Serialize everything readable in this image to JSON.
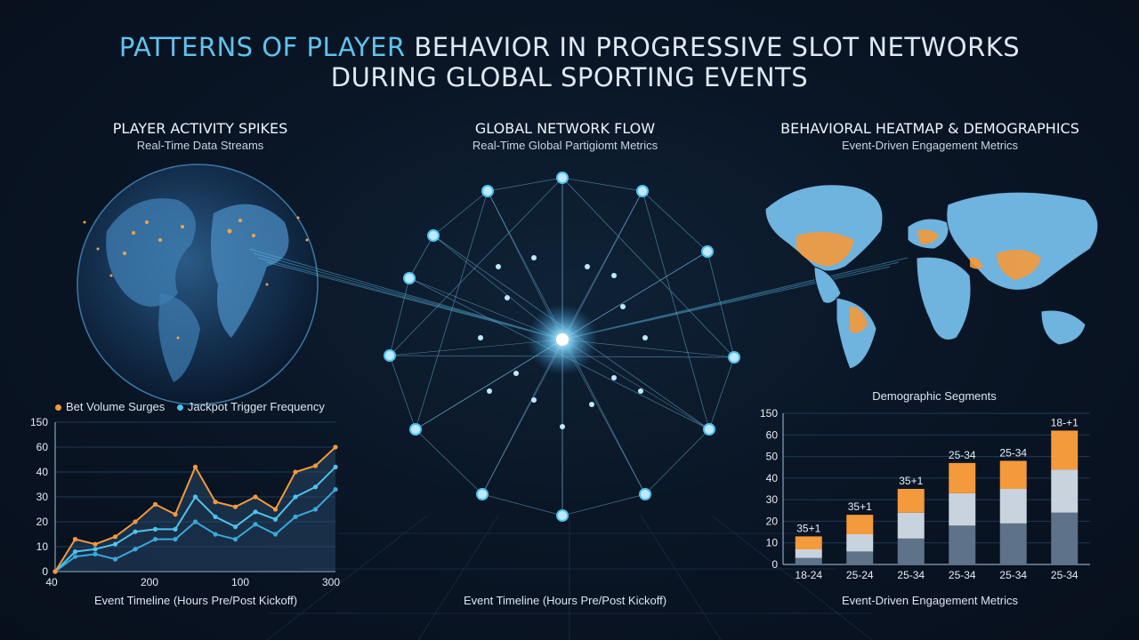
{
  "title": {
    "line1_highlight": "PATTERNS OF PLAYER",
    "line1_rest": " BEHAVIOR IN PROGRESSIVE SLOT NETWORKS",
    "line2": "DURING GLOBAL SPORTING EVENTS"
  },
  "left_panel": {
    "title": "PLAYER ACTIVITY SPIKES",
    "subtitle": "Real-Time Data Streams"
  },
  "center_panel": {
    "title": "GLOBAL NETWORK FLOW",
    "subtitle": "Real-Time Global Partigiomt Metrics",
    "footer": "Event Timeline (Hours Pre/Post Kickoff)"
  },
  "right_panel": {
    "title": "BEHAVIORAL HEATMAP & DEMOGRAPHICS",
    "subtitle": "Event-Driven Engagement Metrics",
    "chart_title": "Demographic Segments",
    "footer": "Event-Driven Engagement Metrics"
  },
  "colors": {
    "orange": "#f39a3c",
    "blue": "#4fc3ec",
    "blue_dim": "#3aa8dc",
    "bar_dark": "#5e7389",
    "bar_light": "#c9d3dd"
  },
  "chart_data": [
    {
      "type": "line",
      "legend": [
        "Bet Volume Surges",
        "Jackpot Trigger Frequency"
      ],
      "y_tick_labels": [
        "0",
        "10",
        "20",
        "30",
        "40",
        "60",
        "150"
      ],
      "x_tick_labels": [
        "40",
        "200",
        "100",
        "300"
      ],
      "xlabel": "Event Timeline (Hours Pre/Post Kickoff)",
      "grid": true,
      "series": [
        {
          "name": "Bet Volume Surges",
          "color": "orange",
          "values": [
            0,
            13,
            11,
            14,
            20,
            27,
            23,
            44,
            28,
            26,
            30,
            25,
            40,
            45,
            60
          ]
        },
        {
          "name": "Jackpot Trigger Frequency",
          "color": "blue",
          "values": [
            0,
            8,
            9,
            11,
            16,
            17,
            17,
            30,
            22,
            18,
            24,
            21,
            30,
            34,
            44
          ]
        },
        {
          "name": "",
          "color": "blue_dim",
          "values": [
            0,
            6,
            7,
            5,
            9,
            13,
            13,
            20,
            15,
            13,
            19,
            15,
            22,
            25,
            33
          ]
        }
      ]
    },
    {
      "type": "bar",
      "title": "Demographic Segments",
      "y_tick_labels": [
        "0",
        "10",
        "20",
        "30",
        "40",
        "50",
        "60",
        "150"
      ],
      "categories": [
        "18-24",
        "25-24",
        "25-34",
        "25-34",
        "25-34",
        "25-34"
      ],
      "bar_labels": [
        "35+1",
        "35+1",
        "35+1",
        "25-34",
        "25-34",
        "18-+1"
      ],
      "series": [
        {
          "name": "",
          "color": "bar_dark",
          "values": [
            3,
            6,
            12,
            18,
            19,
            24
          ]
        },
        {
          "name": "",
          "color": "bar_light",
          "values": [
            4,
            8,
            12,
            15,
            16,
            20
          ]
        },
        {
          "name": "",
          "color": "orange",
          "values": [
            6,
            9,
            11,
            14,
            13,
            18
          ]
        }
      ],
      "xlabel": "Event-Driven Engagement Metrics"
    }
  ]
}
